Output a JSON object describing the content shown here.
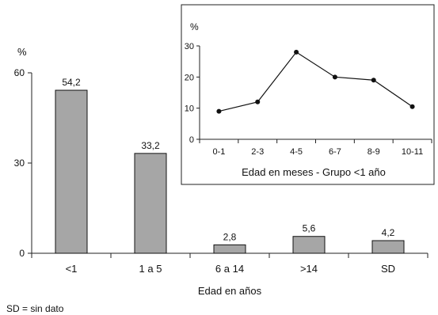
{
  "chart_data": [
    {
      "type": "bar",
      "title": "",
      "ylabel": "%",
      "xlabel": "Edad en años",
      "categories": [
        "<1",
        "1 a 5",
        "6 a 14",
        ">14",
        "SD"
      ],
      "values": [
        54.2,
        33.2,
        2.8,
        5.6,
        4.2
      ],
      "data_labels": [
        "54,2",
        "33,2",
        "2,8",
        "5,6",
        "4,2"
      ],
      "ylim": [
        0,
        60
      ],
      "yticks": [
        0,
        30,
        60
      ],
      "ytick_labels": [
        "0",
        "30",
        "60"
      ],
      "grid": false,
      "legend": null,
      "bar_color": "#a6a6a6"
    },
    {
      "type": "line",
      "title": "",
      "ylabel": "%",
      "xlabel": "Edad en meses - Grupo <1 año",
      "categories": [
        "0-1",
        "2-3",
        "4-5",
        "6-7",
        "8-9",
        "10-11"
      ],
      "values": [
        9,
        12,
        28,
        20,
        19,
        10.5
      ],
      "ylim": [
        0,
        30
      ],
      "yticks": [
        0,
        10,
        20,
        30
      ],
      "ytick_labels": [
        "0",
        "10",
        "20",
        "30"
      ],
      "grid": false,
      "legend": null,
      "line_color": "#111111"
    }
  ],
  "footnote": "SD = sin dato"
}
